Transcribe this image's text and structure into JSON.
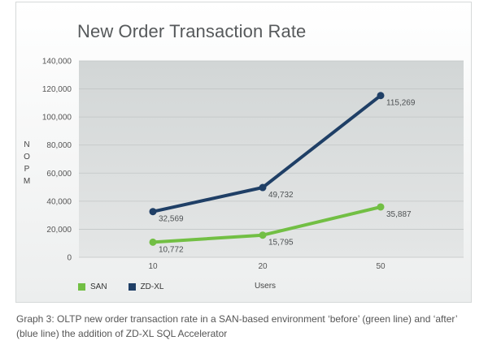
{
  "chart_data": {
    "type": "line",
    "title": "New Order Transaction Rate",
    "xlabel": "Users",
    "ylabel": "NOPM",
    "categories": [
      "10",
      "20",
      "50"
    ],
    "ylim": [
      0,
      140000
    ],
    "yticks": [
      "0",
      "20,000",
      "40,000",
      "60,000",
      "80,000",
      "100,000",
      "120,000",
      "140,000"
    ],
    "grid": true,
    "legend_position": "bottom-left",
    "series": [
      {
        "name": "SAN",
        "color": "#72bf44",
        "values": [
          10772,
          15795,
          35887
        ],
        "labels": [
          "10,772",
          "15,795",
          "35,887"
        ]
      },
      {
        "name": "ZD-XL",
        "color": "#1f3f66",
        "values": [
          32569,
          49732,
          115269
        ],
        "labels": [
          "32,569",
          "49,732",
          "115,269"
        ]
      }
    ]
  },
  "caption": "Graph 3: OLTP new order transaction rate in a SAN-based environment ‘before’ (green line) and ‘after’ (blue line) the addition of ZD-XL SQL Accelerator"
}
